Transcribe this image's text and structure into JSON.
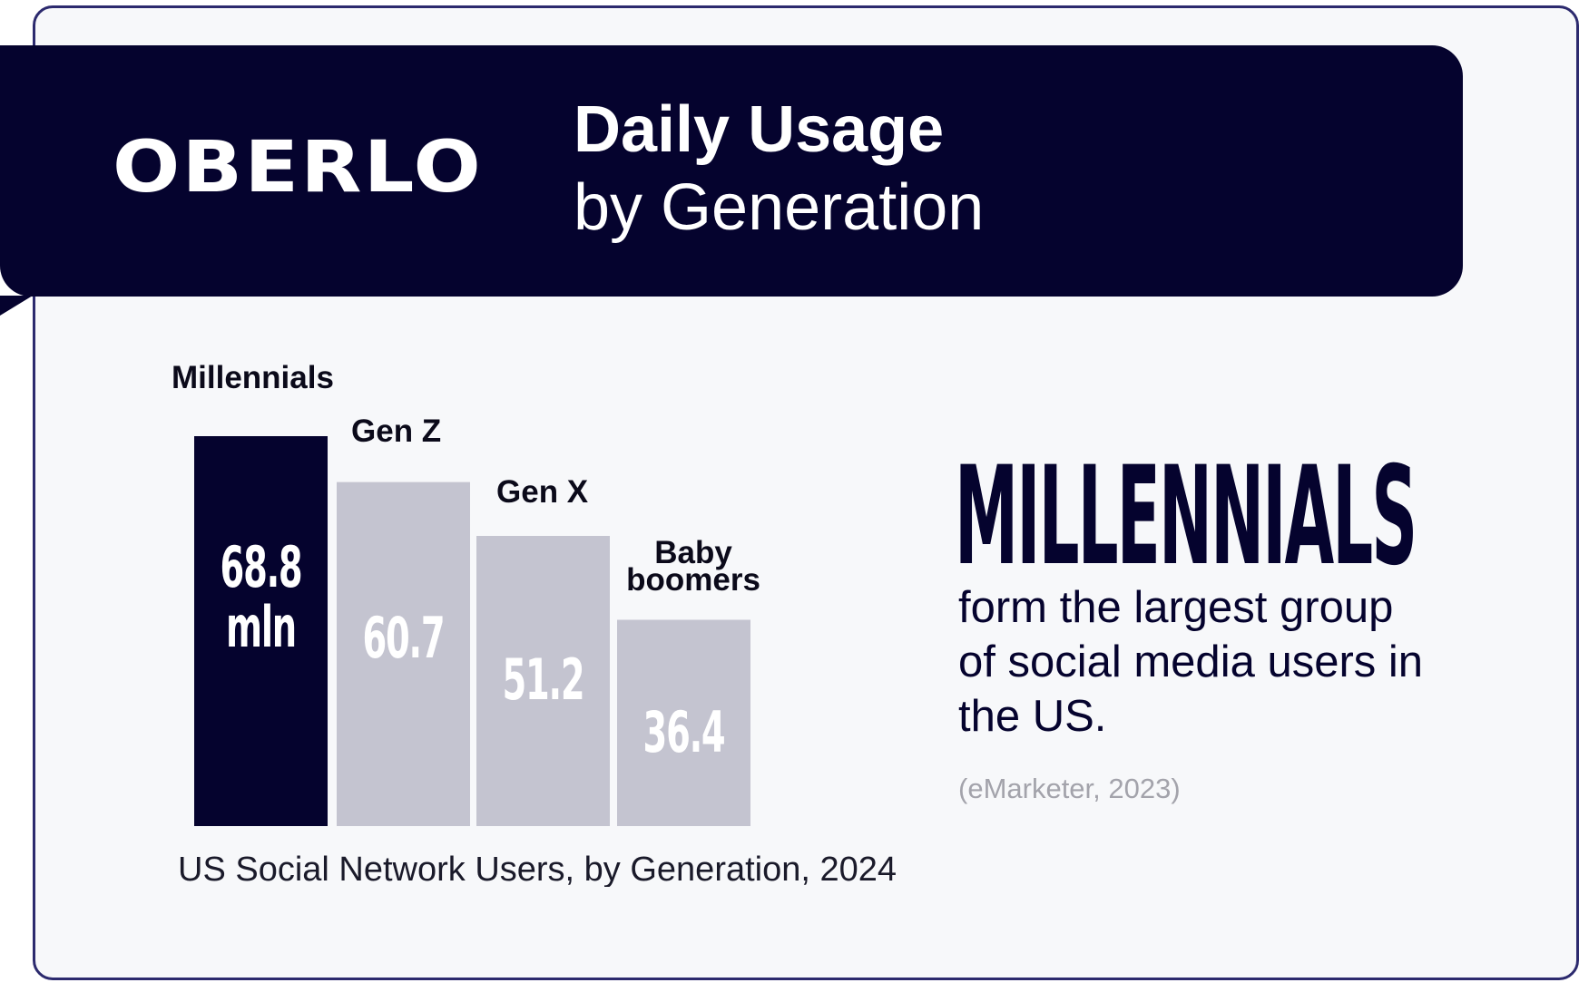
{
  "header": {
    "logo": "OBERLO",
    "title_line1": "Daily Usage",
    "title_line2": "by Generation"
  },
  "chart_data": {
    "type": "bar",
    "categories": [
      "Millennials",
      "Gen Z",
      "Gen X",
      "Baby boomers"
    ],
    "values": [
      68.8,
      60.7,
      51.2,
      36.4
    ],
    "value_labels": [
      "68.8",
      "60.7",
      "51.2",
      "36.4"
    ],
    "unit_label": "mln",
    "title": "US Social Network Users, by Generation, 2024",
    "ylim": [
      0,
      68.8
    ],
    "grid": false,
    "colors": {
      "highlight": "#05032e",
      "default": "#c4c4d0",
      "value_text": "#ffffff"
    }
  },
  "highlight": {
    "headline": "MILLENNIALS",
    "body": "form the largest group of social media users in the US.",
    "source": "(eMarketer, 2023)"
  }
}
